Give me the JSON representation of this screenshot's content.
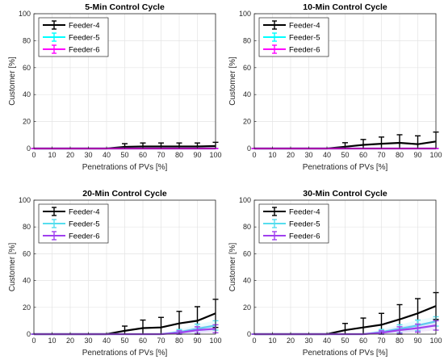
{
  "chart_data": [
    {
      "type": "line",
      "title": "5-Min Control Cycle",
      "xlabel": "Penetrations of PVs [%]",
      "ylabel": "Customer [%]",
      "xlim": [
        0,
        100
      ],
      "ylim": [
        0,
        100
      ],
      "xticks": [
        "0",
        "10",
        "20",
        "30",
        "40",
        "50",
        "60",
        "70",
        "80",
        "90",
        "100"
      ],
      "yticks": [
        "0",
        "20",
        "40",
        "60",
        "80",
        "100"
      ],
      "grid": true,
      "legend_position": "top-left",
      "x": [
        0,
        10,
        20,
        30,
        40,
        50,
        60,
        70,
        80,
        90,
        100
      ],
      "series": [
        {
          "name": "Feeder-4",
          "color": "#000000",
          "values": [
            0,
            0,
            0,
            0,
            0,
            1.2,
            1.5,
            1.5,
            1.5,
            1.5,
            1.8
          ],
          "err": [
            0,
            0,
            0,
            0,
            0,
            2.4,
            2.6,
            2.6,
            2.6,
            2.6,
            2.8
          ]
        },
        {
          "name": "Feeder-5",
          "color": "#00ffff",
          "values": [
            0,
            0,
            0,
            0,
            0,
            0,
            0,
            0,
            0,
            0,
            0
          ],
          "err": [
            0,
            0,
            0,
            0,
            0,
            0,
            0,
            0,
            0,
            0,
            0
          ]
        },
        {
          "name": "Feeder-6",
          "color": "#ff00ff",
          "values": [
            0,
            0,
            0,
            0,
            0,
            0,
            0,
            0,
            0,
            0,
            0
          ],
          "err": [
            0,
            0,
            0,
            0,
            0,
            0,
            0,
            0,
            0,
            0,
            0
          ]
        }
      ]
    },
    {
      "type": "line",
      "title": "10-Min Control Cycle",
      "xlabel": "Penetrations of PVs [%]",
      "ylabel": "Customer [%]",
      "xlim": [
        0,
        100
      ],
      "ylim": [
        0,
        100
      ],
      "xticks": [
        "0",
        "10",
        "20",
        "30",
        "40",
        "50",
        "60",
        "70",
        "80",
        "90",
        "100"
      ],
      "yticks": [
        "0",
        "20",
        "40",
        "60",
        "80",
        "100"
      ],
      "grid": true,
      "legend_position": "top-left",
      "x": [
        0,
        10,
        20,
        30,
        40,
        50,
        60,
        70,
        80,
        90,
        100
      ],
      "series": [
        {
          "name": "Feeder-4",
          "color": "#000000",
          "values": [
            0,
            0,
            0,
            0,
            0,
            1.3,
            2.7,
            3.5,
            4.2,
            3.2,
            5.2
          ],
          "err": [
            0,
            0,
            0,
            0,
            0,
            3.0,
            4.0,
            5.0,
            6.0,
            6.2,
            7.0
          ]
        },
        {
          "name": "Feeder-5",
          "color": "#00ffff",
          "values": [
            0,
            0,
            0,
            0,
            0,
            0,
            0,
            0,
            0,
            0,
            0
          ],
          "err": [
            0,
            0,
            0,
            0,
            0,
            0,
            0,
            0,
            0,
            0,
            0
          ]
        },
        {
          "name": "Feeder-6",
          "color": "#ff00ff",
          "values": [
            0,
            0,
            0,
            0,
            0,
            0,
            0,
            0,
            0,
            0,
            0
          ],
          "err": [
            0,
            0,
            0,
            0,
            0,
            0,
            0,
            0,
            0,
            0,
            0
          ]
        }
      ]
    },
    {
      "type": "line",
      "title": "20-Min Control Cycle",
      "xlabel": "Penetrations of PVs [%]",
      "ylabel": "Customer [%]",
      "xlim": [
        0,
        100
      ],
      "ylim": [
        0,
        100
      ],
      "xticks": [
        "0",
        "10",
        "20",
        "30",
        "40",
        "50",
        "60",
        "70",
        "80",
        "90",
        "100"
      ],
      "yticks": [
        "0",
        "20",
        "40",
        "60",
        "80",
        "100"
      ],
      "grid": true,
      "legend_position": "top-left",
      "x": [
        0,
        10,
        20,
        30,
        40,
        50,
        60,
        70,
        80,
        90,
        100
      ],
      "series": [
        {
          "name": "Feeder-4",
          "color": "#000000",
          "values": [
            0,
            0,
            0,
            0,
            0,
            2.5,
            4.5,
            5.0,
            8.0,
            10.0,
            15.5
          ],
          "err": [
            0,
            0,
            0,
            0,
            0,
            3.5,
            6.0,
            7.5,
            9.0,
            10.5,
            10.5
          ]
        },
        {
          "name": "Feeder-5",
          "color": "#55ddee",
          "values": [
            0,
            0,
            0,
            0,
            0,
            0,
            0,
            0,
            1.5,
            4.0,
            6.5
          ],
          "err": [
            0,
            0,
            0,
            0,
            0,
            0,
            0,
            0,
            2.0,
            3.5,
            3.5
          ]
        },
        {
          "name": "Feeder-6",
          "color": "#a040ee",
          "values": [
            0,
            0,
            0,
            0,
            0,
            0,
            0,
            0,
            1.0,
            3.0,
            4.0
          ],
          "err": [
            0,
            0,
            0,
            0,
            0,
            0,
            0,
            0,
            1.5,
            2.5,
            3.0
          ]
        }
      ]
    },
    {
      "type": "line",
      "title": "30-Min Control Cycle",
      "xlabel": "Penetrations of PVs [%]",
      "ylabel": "Customer [%]",
      "xlim": [
        0,
        100
      ],
      "ylim": [
        0,
        100
      ],
      "xticks": [
        "0",
        "10",
        "20",
        "30",
        "40",
        "50",
        "60",
        "70",
        "80",
        "90",
        "100"
      ],
      "yticks": [
        "0",
        "20",
        "40",
        "60",
        "80",
        "100"
      ],
      "grid": true,
      "legend_position": "top-left",
      "x": [
        0,
        10,
        20,
        30,
        40,
        50,
        60,
        70,
        80,
        90,
        100
      ],
      "series": [
        {
          "name": "Feeder-4",
          "color": "#000000",
          "values": [
            0,
            0,
            0,
            0,
            0,
            3.0,
            5.0,
            7.0,
            11.0,
            15.5,
            21.0
          ],
          "err": [
            0,
            0,
            0,
            0,
            0,
            5.0,
            7.0,
            8.5,
            11.0,
            11.0,
            10.0
          ]
        },
        {
          "name": "Feeder-5",
          "color": "#55ddee",
          "values": [
            0,
            0,
            0,
            0,
            0,
            0,
            0,
            1.5,
            4.0,
            6.5,
            9.5
          ],
          "err": [
            0,
            0,
            0,
            0,
            0,
            0,
            0,
            2.0,
            3.0,
            4.0,
            3.5
          ]
        },
        {
          "name": "Feeder-6",
          "color": "#a040ee",
          "values": [
            0,
            0,
            0,
            0,
            0,
            0,
            0,
            1.0,
            3.0,
            4.5,
            6.5
          ],
          "err": [
            0,
            0,
            0,
            0,
            0,
            0,
            0,
            1.5,
            2.5,
            3.0,
            3.5
          ]
        }
      ]
    }
  ]
}
